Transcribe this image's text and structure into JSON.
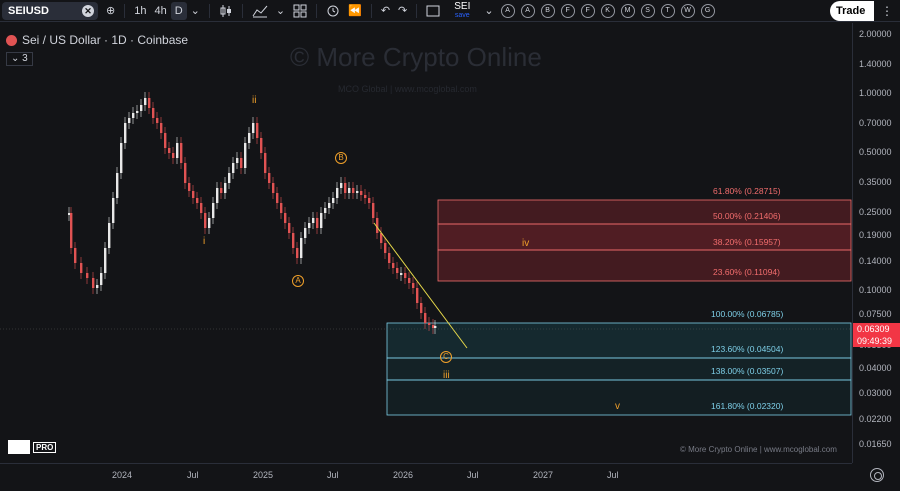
{
  "toolbar": {
    "symbol": "SEIUSD",
    "intervals": [
      "1h",
      "4h",
      "D"
    ],
    "active_interval": "D",
    "sei_name": "SEI",
    "save_label": "save",
    "letter_buttons": [
      "A",
      "A",
      "B",
      "F",
      "F",
      "K",
      "M",
      "S",
      "T",
      "W",
      "G"
    ],
    "trade_label": "Trade"
  },
  "legend": {
    "title": "Sei / US Dollar · 1D · Coinbase",
    "indicator_count": "3"
  },
  "watermark": {
    "main": "© More Crypto Online",
    "sub": "MCO Global | www.mcoglobal.com"
  },
  "footer_credit": "© More Crypto Online  |  www.mcoglobal.com",
  "logo_badge": "PRO",
  "price_axis": [
    "2.00000",
    "1.40000",
    "1.00000",
    "0.70000",
    "0.50000",
    "0.35000",
    "0.25000",
    "0.19000",
    "0.14000",
    "0.10000",
    "0.07500",
    "0.05500",
    "0.04000",
    "0.03000",
    "0.02200",
    "0.01650"
  ],
  "price_tag": {
    "price": "0.06309",
    "countdown": "09:49:39",
    "color": "#f23645"
  },
  "time_axis": [
    "2024",
    "Jul",
    "2025",
    "Jul",
    "2026",
    "Jul",
    "2027",
    "Jul"
  ],
  "fib_levels": [
    {
      "label": "61.80% (0.28715)",
      "color": "#f26d6d"
    },
    {
      "label": "50.00% (0.21406)",
      "color": "#f26d6d"
    },
    {
      "label": "38.20% (0.15957)",
      "color": "#f26d6d"
    },
    {
      "label": "23.60% (0.11094)",
      "color": "#f26d6d"
    },
    {
      "label": "100.00% (0.06785)",
      "color": "#7ecfe8"
    },
    {
      "label": "123.60% (0.04504)",
      "color": "#7ecfe8"
    },
    {
      "label": "138.00% (0.03507)",
      "color": "#7ecfe8"
    },
    {
      "label": "161.80% (0.02320)",
      "color": "#7ecfe8"
    }
  ],
  "wave_labels": {
    "ii": "ii",
    "i": "i",
    "a": "A",
    "b": "B",
    "c": "C",
    "iii": "iii",
    "iv": "iv",
    "v": "v"
  },
  "colors": {
    "background": "#131417",
    "up": "#e8e8e8",
    "down": "#e05353",
    "resistance_zone": "#f23645",
    "support_zone": "#26c6da",
    "wave": "#f0a02a",
    "trendline": "#e6d84a"
  }
}
